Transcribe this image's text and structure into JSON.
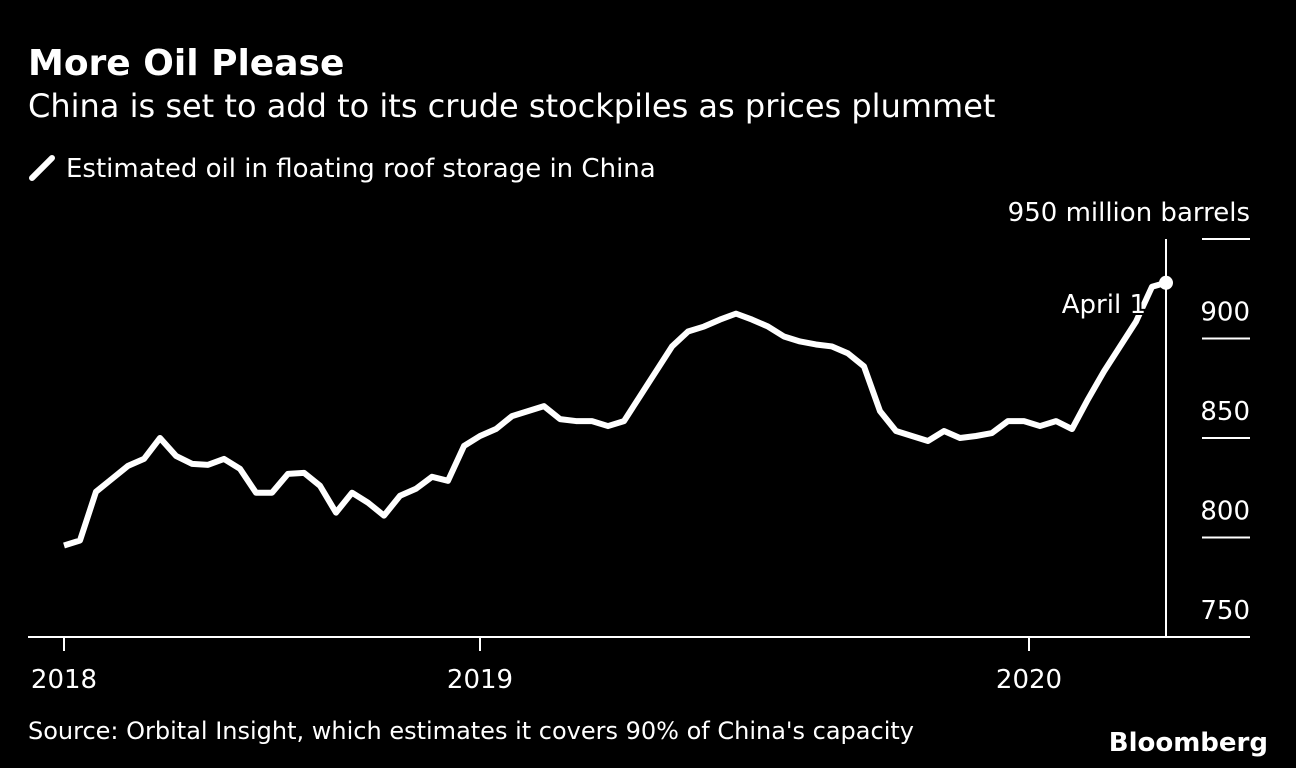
{
  "chart_data": {
    "type": "line",
    "title": "More Oil Please",
    "subtitle": "China is set to add to its crude stockpiles as prices plummet",
    "source": "Source: Orbital Insight, which estimates it covers 90% of China's capacity",
    "brand": "Bloomberg",
    "annotation": "April 1",
    "series": [
      {
        "name": "Estimated oil in floating roof storage in China",
        "color": "#ffffff",
        "x": [
          0,
          1,
          2,
          3,
          4,
          5,
          6,
          7,
          8,
          9,
          10,
          11,
          12,
          13,
          14,
          15,
          16,
          17,
          18,
          19,
          20,
          21,
          22,
          23,
          24,
          25,
          26,
          27,
          28,
          29,
          30,
          31,
          32,
          33,
          34,
          35,
          36,
          37,
          38,
          39,
          40,
          41,
          42,
          43,
          44,
          45,
          46,
          47,
          48,
          49,
          50,
          51,
          52,
          53,
          54,
          55,
          56,
          57,
          58,
          59,
          60,
          61,
          62,
          63,
          64,
          65,
          66,
          67,
          68,
          68.875
        ],
        "values": [
          796,
          798.5,
          823,
          829.5,
          836,
          839.5,
          850,
          841,
          837,
          836.5,
          839.5,
          834.5,
          822.5,
          822.5,
          832,
          832.5,
          826,
          812.5,
          822.5,
          817.5,
          811,
          821,
          824.5,
          830.5,
          828.5,
          846,
          851,
          854.5,
          861,
          863.5,
          866,
          859.5,
          858.5,
          858.5,
          856,
          858.5,
          871,
          883.5,
          896,
          903.5,
          906,
          909.5,
          912.5,
          909.5,
          906,
          901,
          898.5,
          897,
          896,
          892.5,
          886,
          863.5,
          853.5,
          851,
          848.5,
          853.5,
          850,
          851,
          852.5,
          858.5,
          858.5,
          856,
          858.5,
          854.5,
          869.5,
          883.5,
          896,
          908.5,
          926,
          928
        ]
      }
    ],
    "xlim": [
      -2.25,
      74.125
    ],
    "xticks": [
      {
        "value": 0,
        "label": "2018"
      },
      {
        "value": 26,
        "label": "2019"
      },
      {
        "value": 60.3125,
        "label": "2020"
      }
    ],
    "ylim": [
      750,
      950
    ],
    "yticks": [
      750,
      800,
      850,
      900,
      {
        "value": 950,
        "label": "950 million barrels"
      }
    ]
  }
}
